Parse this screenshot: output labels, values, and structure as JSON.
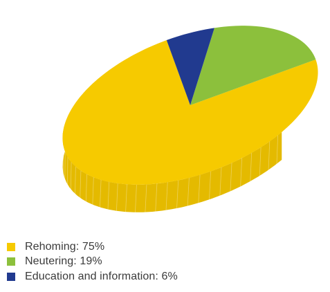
{
  "chart_data": {
    "type": "pie",
    "style": "3d-tilted",
    "title": "",
    "categories": [
      "Rehoming",
      "Neutering",
      "Education and information"
    ],
    "values": [
      75,
      19,
      6
    ],
    "unit": "%",
    "colors": [
      "#F6CA00",
      "#8CC03C",
      "#213A8F"
    ],
    "side_colors": [
      "#E4BA00",
      "#7AAA32",
      "#1A2F75"
    ],
    "legend": {
      "placement": "bottom-left",
      "entries": [
        "Rehoming: 75%",
        "Neutering: 19%",
        "Education and information: 6%"
      ]
    }
  }
}
